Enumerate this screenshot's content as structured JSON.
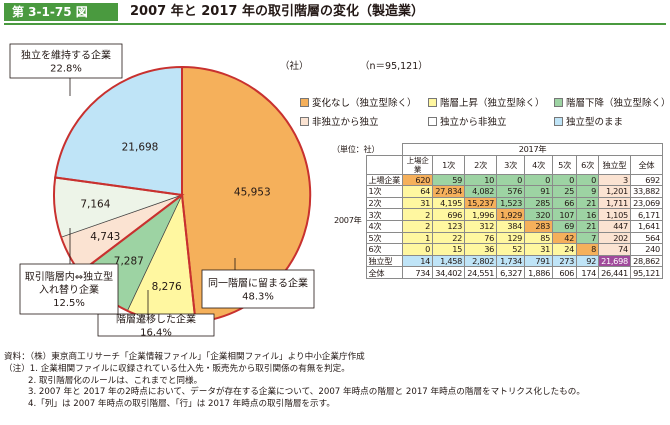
{
  "header": {
    "figure_number": "第 3-1-75 図",
    "title": "2007 年と 2017 年の取引階層の変化（製造業）"
  },
  "unit_companies": "（社）",
  "sample_size": "（n＝95,121）",
  "chart_data": [
    {
      "type": "pie",
      "slices": [
        {
          "key": "same",
          "value": 45953,
          "value_label": "45,953",
          "color": "#f5b05b",
          "callout": [
            "同一階層に留まる企業",
            "48.3%"
          ]
        },
        {
          "key": "up",
          "value": 8276,
          "value_label": "8,276",
          "color": "#fff7a0",
          "callout": []
        },
        {
          "key": "down",
          "value": 7287,
          "value_label": "7,287",
          "color": "#9dd3a3",
          "callout": [
            "階層遷移した企業",
            "16.4%"
          ]
        },
        {
          "key": "to_ind",
          "value": 4743,
          "value_label": "4,743",
          "color": "#fbe3d2",
          "callout": []
        },
        {
          "key": "from_ind",
          "value": 7164,
          "value_label": "7,164",
          "color": "#edf4e8",
          "callout": [
            "取引階層内⇔独立型",
            "入れ替り企業",
            "12.5%"
          ]
        },
        {
          "key": "ind",
          "value": 21698,
          "value_label": "21,698",
          "color": "#bfe4f7",
          "callout": [
            "独立を維持する企業",
            "22.8%"
          ]
        }
      ],
      "legend": [
        {
          "label": "変化なし（独立型除く）",
          "color": "#f5b05b"
        },
        {
          "label": "階層上昇（独立型除く）",
          "color": "#fff7a0"
        },
        {
          "label": "階層下降（独立型除く）",
          "color": "#9dd3a3"
        },
        {
          "label": "非独立から独立",
          "color": "#fbe3d2"
        },
        {
          "label": "独立から非独立",
          "color": "#ffffff"
        },
        {
          "label": "独立型のまま",
          "color": "#bfe4f7"
        }
      ],
      "legend_position": "right"
    },
    {
      "type": "table",
      "unit": "（単位：社）",
      "col_group_label": "2017年",
      "row_group_label": "2007年",
      "columns": [
        "上場企業",
        "1次",
        "2次",
        "3次",
        "4次",
        "5次",
        "6次",
        "独立型",
        "全体"
      ],
      "rows": [
        {
          "label": "上場企業",
          "values": [
            "620",
            "59",
            "10",
            "0",
            "0",
            "0",
            "0",
            "3",
            "692"
          ]
        },
        {
          "label": "1次",
          "values": [
            "64",
            "27,834",
            "4,082",
            "576",
            "91",
            "25",
            "9",
            "1,201",
            "33,882"
          ]
        },
        {
          "label": "2次",
          "values": [
            "31",
            "4,195",
            "15,237",
            "1,523",
            "285",
            "66",
            "21",
            "1,711",
            "23,069"
          ]
        },
        {
          "label": "3次",
          "values": [
            "2",
            "696",
            "1,996",
            "1,929",
            "320",
            "107",
            "16",
            "1,105",
            "6,171"
          ]
        },
        {
          "label": "4次",
          "values": [
            "2",
            "123",
            "312",
            "384",
            "283",
            "69",
            "21",
            "447",
            "1,641"
          ]
        },
        {
          "label": "5次",
          "values": [
            "1",
            "22",
            "76",
            "129",
            "85",
            "42",
            "7",
            "202",
            "564"
          ]
        },
        {
          "label": "6次",
          "values": [
            "0",
            "15",
            "36",
            "52",
            "31",
            "24",
            "8",
            "74",
            "240"
          ]
        },
        {
          "label": "独立型",
          "values": [
            "14",
            "1,458",
            "2,802",
            "1,734",
            "791",
            "273",
            "92",
            "21,698",
            "28,862"
          ]
        },
        {
          "label": "全体",
          "values": [
            "734",
            "34,402",
            "24,551",
            "6,327",
            "1,886",
            "606",
            "174",
            "26,441",
            "95,121"
          ]
        }
      ]
    }
  ],
  "notes": [
    "資料：（株）東京商工リサーチ「企業情報ファイル」「企業相関ファイル」より中小企業庁作成",
    "（注）1. 企業相関ファイルに収録されている仕入先・販売先から取引関係の有無を判定。",
    "2. 取引階層化のルールは、これまでと同様。",
    "3. 2007 年と 2017 年の2時点において、データが存在する企業について、2007 年時点の階層と 2017 年時点の階層をマトリクス化したもの。",
    "4.「列」は 2007 年時点の取引階層、「行」は 2017 年時点の取引階層を示す。"
  ],
  "colors": {
    "brand_green": "#4a9a3f",
    "same": "#f5b05b",
    "up": "#fff7a0",
    "down": "#9dd3a3",
    "to_independent": "#fbe3d2",
    "independent": "#bfe4f7",
    "independent_kept": "#a04a9c",
    "callout_border": "#c8312f"
  }
}
